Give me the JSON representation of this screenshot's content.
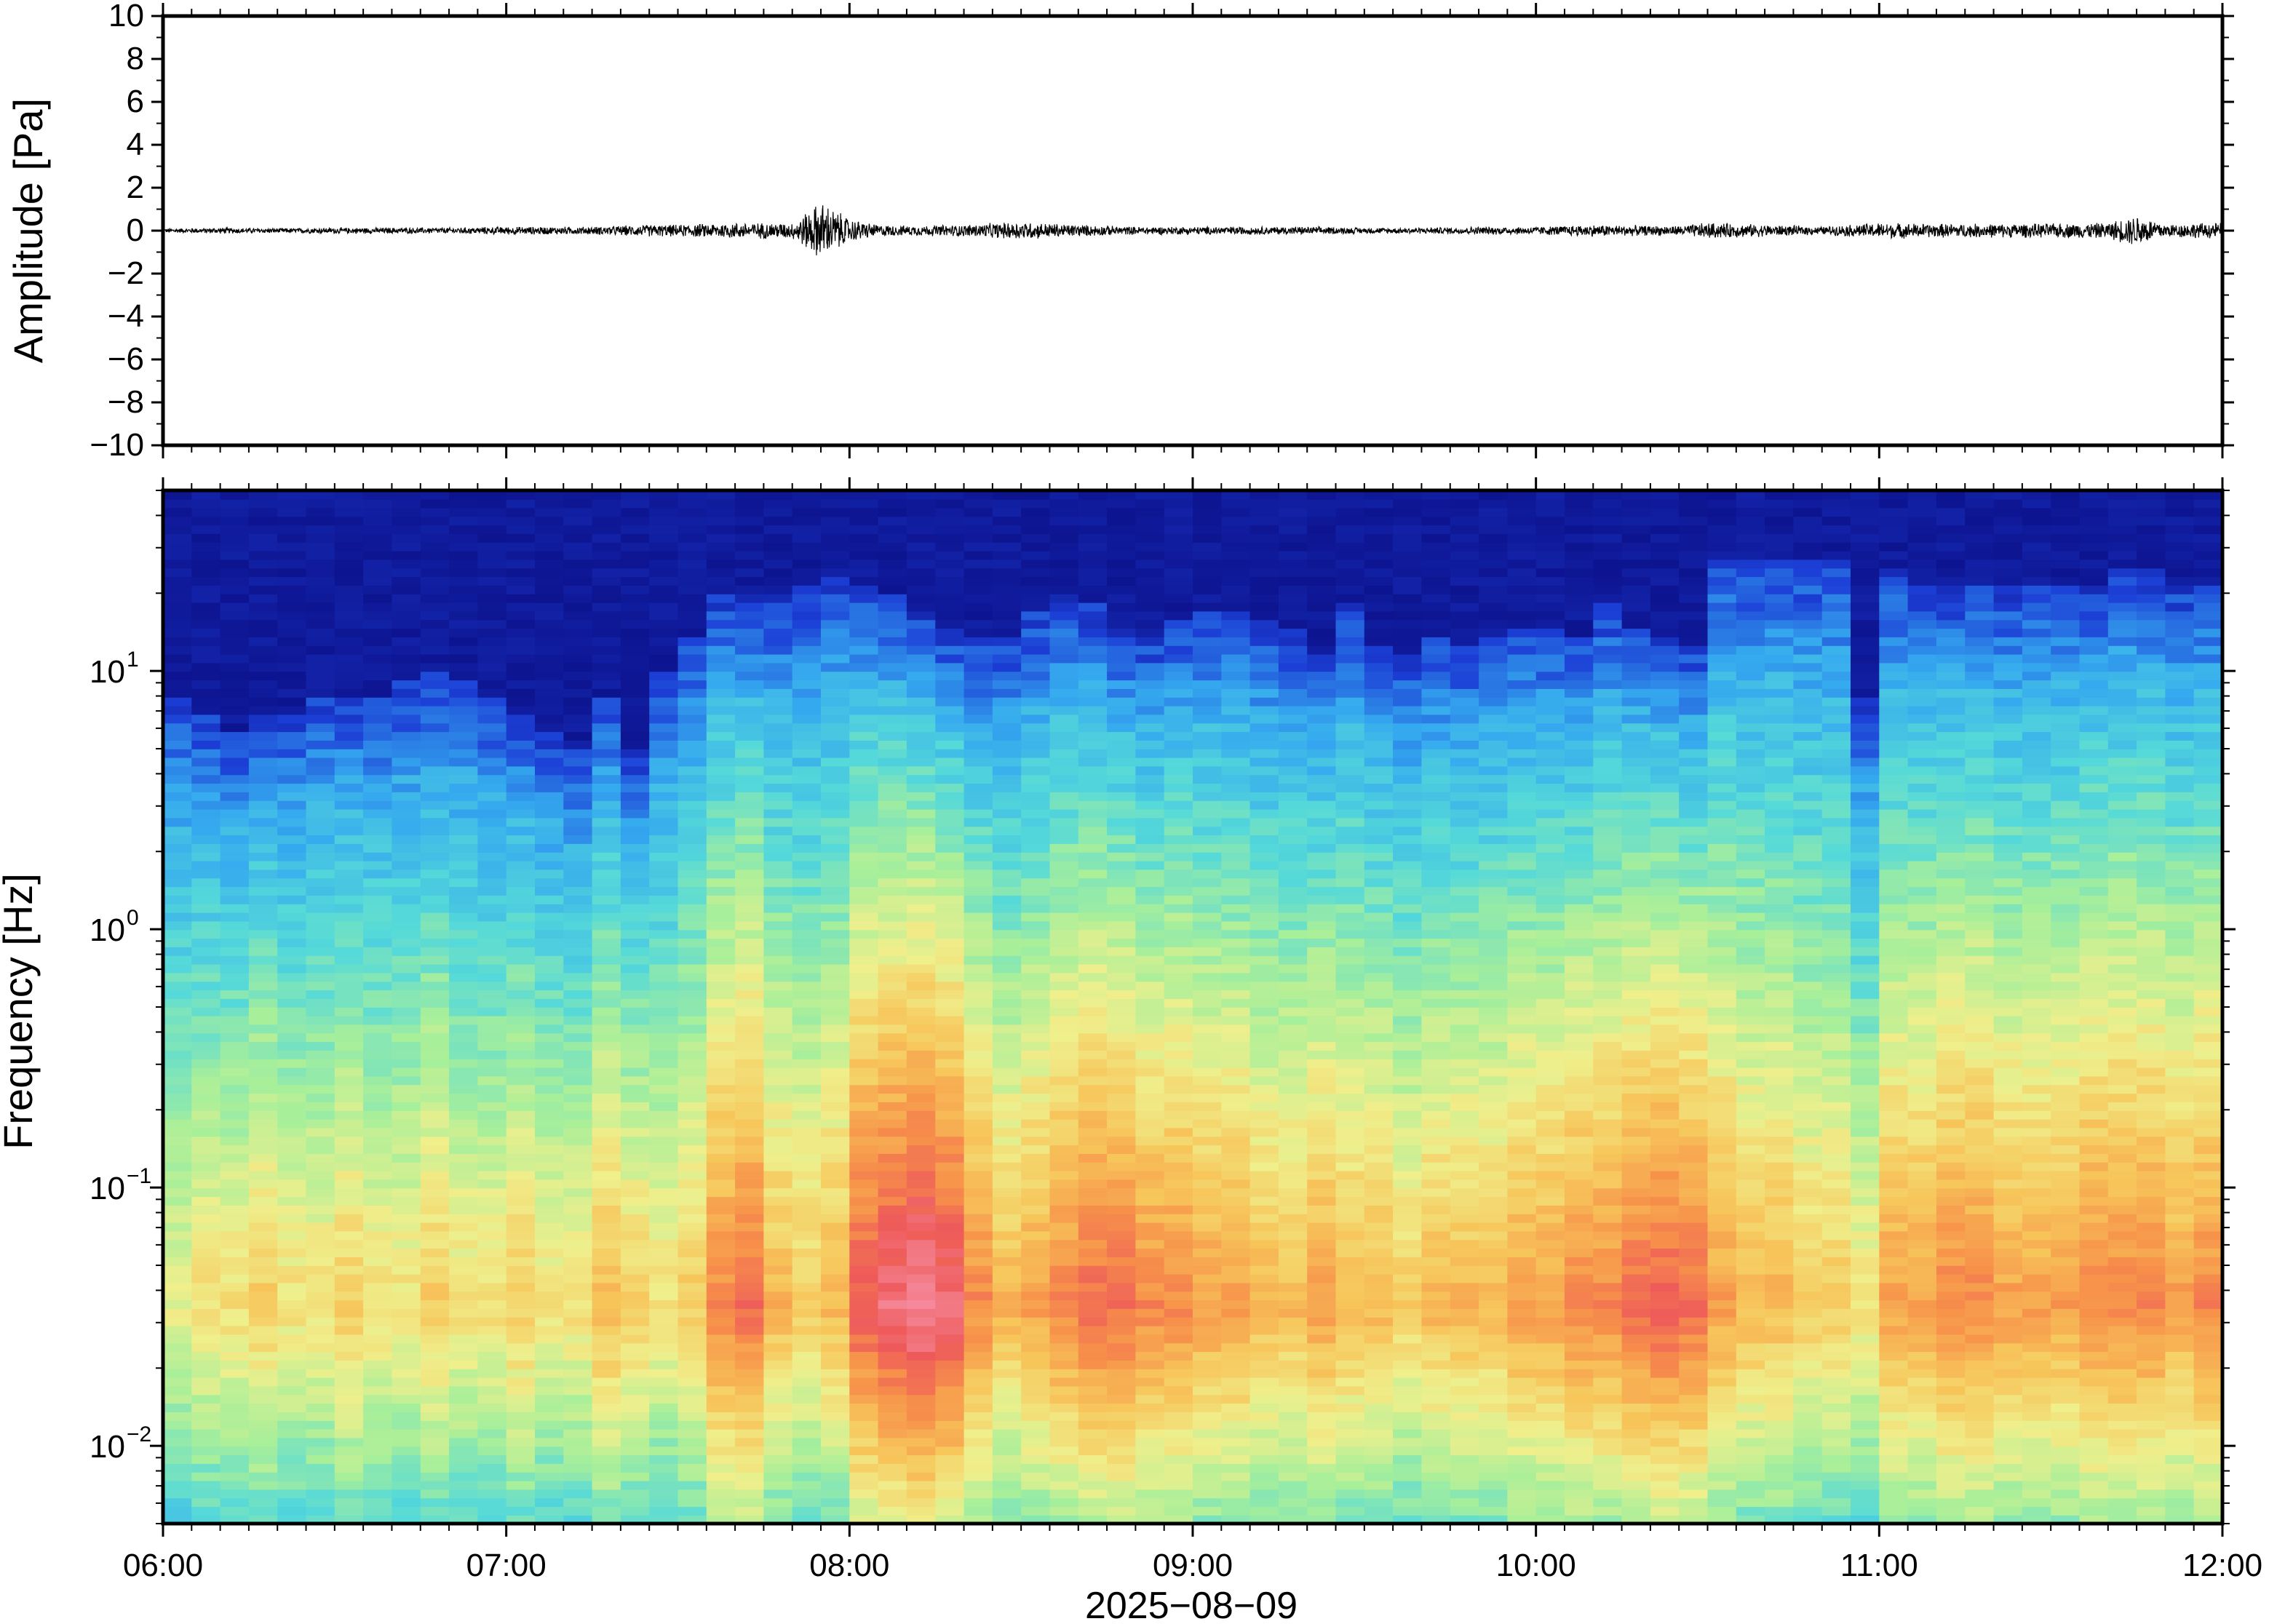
{
  "chart_data": [
    {
      "type": "line",
      "panel": "waveform",
      "ylabel": "Amplitude [Pa]",
      "ylim": [
        -10,
        10
      ],
      "yticks": [
        10,
        8,
        6,
        4,
        2,
        0,
        -2,
        -4,
        -6,
        -8,
        -10
      ],
      "ytick_labels": [
        "10",
        "8",
        "6",
        "4",
        "2",
        "0",
        "−2",
        "−4",
        "−6",
        "−8",
        "−10"
      ],
      "xlim": [
        "06:00",
        "12:00"
      ],
      "line_color": "#000000",
      "envelope": {
        "x": [
          "06:00",
          "06:10",
          "06:20",
          "06:30",
          "06:40",
          "06:50",
          "07:00",
          "07:10",
          "07:15",
          "07:20",
          "07:25",
          "07:30",
          "07:35",
          "07:40",
          "07:45",
          "07:50",
          "07:55",
          "08:00",
          "08:05",
          "08:10",
          "08:20",
          "08:30",
          "08:40",
          "08:50",
          "09:00",
          "09:10",
          "09:20",
          "09:30",
          "09:40",
          "09:50",
          "10:00",
          "10:10",
          "10:20",
          "10:25",
          "10:30",
          "10:40",
          "10:50",
          "10:55",
          "11:00",
          "11:10",
          "11:20",
          "11:30",
          "11:40",
          "11:45",
          "11:50",
          "12:00"
        ],
        "y": [
          0.1,
          0.15,
          0.12,
          0.15,
          0.15,
          0.15,
          0.2,
          0.2,
          0.2,
          0.25,
          0.3,
          0.3,
          0.35,
          0.4,
          0.4,
          0.4,
          1.5,
          0.6,
          0.3,
          0.25,
          0.3,
          0.45,
          0.3,
          0.2,
          0.2,
          0.2,
          0.2,
          0.15,
          0.15,
          0.2,
          0.2,
          0.3,
          0.25,
          0.25,
          0.4,
          0.3,
          0.2,
          0.3,
          0.4,
          0.35,
          0.35,
          0.35,
          0.4,
          0.8,
          0.35,
          0.4
        ]
      }
    },
    {
      "type": "heatmap",
      "panel": "spectrogram",
      "ylabel": "Frequency [Hz]",
      "yscale": "log",
      "ylim": [
        0.005,
        50
      ],
      "yticks": [
        0.01,
        0.1,
        1,
        10
      ],
      "ytick_labels": [
        {
          "base": "10",
          "exp": "−2"
        },
        {
          "base": "10",
          "exp": "−1"
        },
        {
          "base": "10",
          "exp": "0"
        },
        {
          "base": "10",
          "exp": "1"
        }
      ],
      "xlabel": "2025−08−09",
      "xlim": [
        "06:00",
        "12:00"
      ],
      "xtick_labels": [
        "06:00",
        "07:00",
        "08:00",
        "09:00",
        "10:00",
        "11:00",
        "12:00"
      ],
      "colormap": [
        "#0a0a80",
        "#1c3fd6",
        "#35a9ef",
        "#55d9d9",
        "#a8ef9a",
        "#efef8c",
        "#f7c65b",
        "#f7924a",
        "#ee5a5a",
        "#f58a9c"
      ],
      "time_columns": [
        "06:00",
        "06:05",
        "06:10",
        "06:15",
        "06:20",
        "06:25",
        "06:30",
        "06:35",
        "06:40",
        "06:45",
        "06:50",
        "06:55",
        "07:00",
        "07:05",
        "07:10",
        "07:15",
        "07:20",
        "07:25",
        "07:30",
        "07:35",
        "07:40",
        "07:45",
        "07:50",
        "07:55",
        "08:00",
        "08:05",
        "08:10",
        "08:15",
        "08:20",
        "08:25",
        "08:30",
        "08:35",
        "08:40",
        "08:45",
        "08:50",
        "08:55",
        "09:00",
        "09:05",
        "09:10",
        "09:15",
        "09:20",
        "09:25",
        "09:30",
        "09:35",
        "09:40",
        "09:45",
        "09:50",
        "09:55",
        "10:00",
        "10:05",
        "10:10",
        "10:15",
        "10:20",
        "10:25",
        "10:30",
        "10:35",
        "10:40",
        "10:45",
        "10:50",
        "10:55",
        "11:00",
        "11:05",
        "11:10",
        "11:15",
        "11:20",
        "11:25",
        "11:30",
        "11:35",
        "11:40",
        "11:45",
        "11:50",
        "11:55"
      ],
      "upper_extent_hz": [
        8,
        7,
        6,
        7,
        7,
        8,
        8,
        8,
        9,
        10,
        9,
        8,
        7,
        6,
        5,
        8,
        5,
        10,
        14,
        20,
        20,
        20,
        22,
        24,
        22,
        20,
        17,
        15,
        14,
        14,
        17,
        20,
        18,
        15,
        14,
        16,
        17,
        17,
        16,
        15,
        12,
        18,
        13,
        12,
        14,
        13,
        14,
        15,
        15,
        14,
        18,
        15,
        14,
        13,
        28,
        28,
        28,
        28,
        28,
        8,
        25,
        22,
        22,
        22,
        22,
        22,
        22,
        22,
        25,
        25,
        22,
        22
      ],
      "intensity_low_freq": [
        0.55,
        0.6,
        0.6,
        0.65,
        0.6,
        0.6,
        0.65,
        0.6,
        0.6,
        0.65,
        0.6,
        0.6,
        0.65,
        0.6,
        0.6,
        0.7,
        0.65,
        0.6,
        0.65,
        0.8,
        0.85,
        0.7,
        0.65,
        0.7,
        0.9,
        0.95,
        1.0,
        0.95,
        0.8,
        0.7,
        0.75,
        0.8,
        0.85,
        0.85,
        0.8,
        0.8,
        0.75,
        0.75,
        0.7,
        0.7,
        0.75,
        0.7,
        0.7,
        0.65,
        0.7,
        0.7,
        0.7,
        0.75,
        0.75,
        0.8,
        0.8,
        0.85,
        0.88,
        0.85,
        0.75,
        0.7,
        0.7,
        0.65,
        0.65,
        0.6,
        0.75,
        0.75,
        0.8,
        0.8,
        0.75,
        0.75,
        0.75,
        0.8,
        0.8,
        0.8,
        0.75,
        0.8
      ]
    }
  ]
}
